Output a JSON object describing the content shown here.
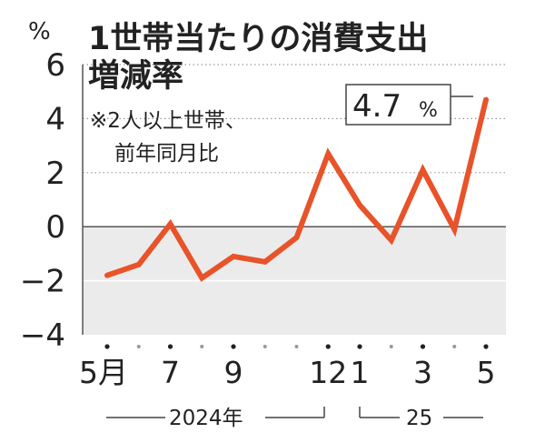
{
  "chart_data": {
    "type": "line",
    "title": "1世帯当たりの消費支出増減率",
    "title_lines": [
      "1世帯当たりの消費支出",
      "増減率"
    ],
    "note_lines": [
      "※2人以上世帯、",
      "前年同月比"
    ],
    "ylabel": "%",
    "ylim": [
      -4,
      6
    ],
    "yticks": [
      6,
      4,
      2,
      0,
      -2,
      -4
    ],
    "ytick_labels": [
      "6",
      "4",
      "2",
      "0",
      "−2",
      "−4"
    ],
    "grid": "dotted horizontal",
    "negative_region_shaded": true,
    "x": [
      "2024-05",
      "2024-06",
      "2024-07",
      "2024-08",
      "2024-09",
      "2024-10",
      "2024-11",
      "2024-12",
      "2025-01",
      "2025-02",
      "2025-03",
      "2025-04",
      "2025-05"
    ],
    "x_tick_labels": [
      "5月",
      "",
      "7",
      "",
      "9",
      "",
      "",
      "12",
      "1",
      "",
      "3",
      "",
      "5"
    ],
    "year_labels": [
      "2024年",
      "25"
    ],
    "series": [
      {
        "values": [
          -1.8,
          -1.4,
          0.1,
          -1.9,
          -1.1,
          -1.3,
          -0.4,
          2.7,
          0.8,
          -0.5,
          2.1,
          -0.1,
          4.7
        ]
      }
    ],
    "last_value_label": "4.7",
    "last_value_unit": "%",
    "line_color": "#e8532a",
    "shade_color": "#ebebeb",
    "axis_color": "#555555",
    "text_color": "#222222"
  }
}
